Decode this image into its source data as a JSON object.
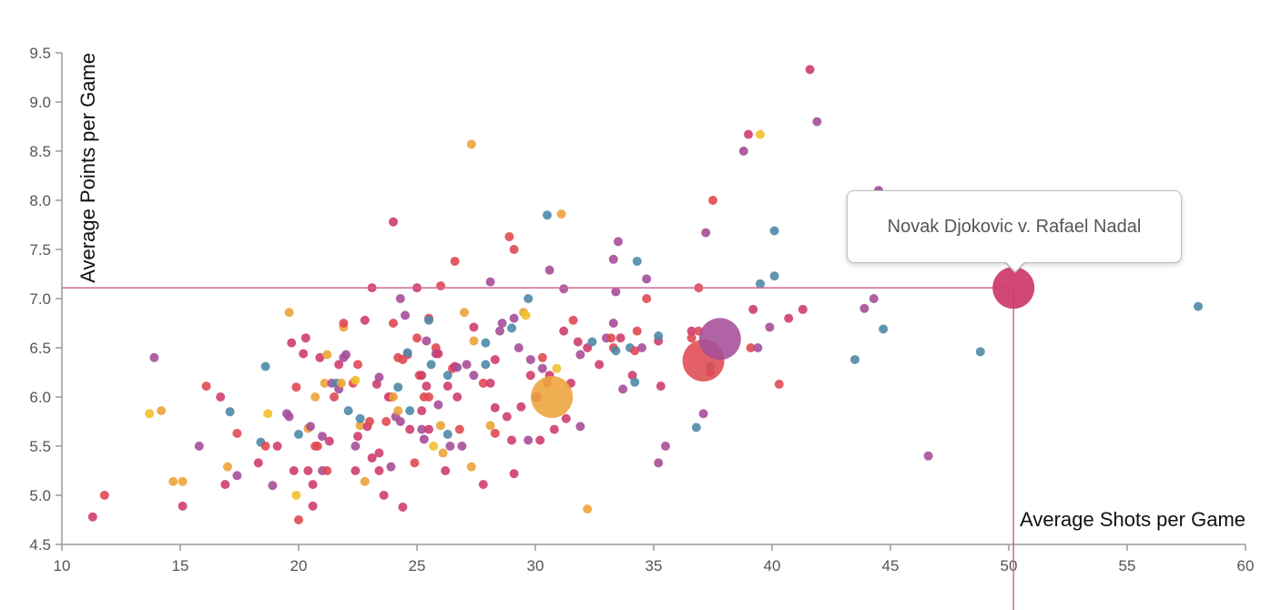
{
  "chart_data": {
    "type": "scatter",
    "xlabel": "Average Shots per Game",
    "ylabel": "Average Points per Game",
    "xlim": [
      10,
      60
    ],
    "ylim": [
      4.5,
      9.5
    ],
    "x_ticks": [
      "10",
      "15",
      "20",
      "25",
      "30",
      "35",
      "40",
      "45",
      "50",
      "55",
      "60"
    ],
    "y_ticks": [
      "4.5",
      "5.0",
      "5.5",
      "6.0",
      "6.5",
      "7.0",
      "7.5",
      "8.0",
      "8.5",
      "9.0",
      "9.5"
    ],
    "grid": false,
    "palette": {
      "red": "#e04a52",
      "magenta": "#cf3d6f",
      "purple": "#a54f99",
      "blue": "#4e8aa8",
      "orange": "#eda33a",
      "yellow": "#f2c12e",
      "crosshair": "#d16893"
    },
    "highlight": {
      "label": "Novak Djokovic v. Rafael Nadal",
      "x": 50.2,
      "y": 7.11,
      "color": "magenta"
    },
    "large_points": [
      {
        "x": 30.7,
        "y": 6.0,
        "color": "orange"
      },
      {
        "x": 37.1,
        "y": 6.37,
        "color": "red"
      },
      {
        "x": 37.8,
        "y": 6.59,
        "color": "purple"
      }
    ],
    "points": [
      [
        11.3,
        4.78,
        "magenta"
      ],
      [
        11.8,
        5.0,
        "red"
      ],
      [
        13.7,
        5.83,
        "yellow"
      ],
      [
        13.9,
        6.4,
        "purple"
      ],
      [
        14.2,
        5.86,
        "orange"
      ],
      [
        14.7,
        5.14,
        "orange"
      ],
      [
        15.1,
        5.14,
        "orange"
      ],
      [
        15.1,
        4.89,
        "magenta"
      ],
      [
        15.8,
        5.5,
        "purple"
      ],
      [
        16.1,
        6.11,
        "red"
      ],
      [
        16.7,
        6.0,
        "magenta"
      ],
      [
        16.9,
        5.11,
        "magenta"
      ],
      [
        17.0,
        5.29,
        "orange"
      ],
      [
        17.1,
        5.85,
        "blue"
      ],
      [
        17.4,
        5.2,
        "purple"
      ],
      [
        17.4,
        5.63,
        "red"
      ],
      [
        18.3,
        5.33,
        "magenta"
      ],
      [
        18.4,
        5.54,
        "blue"
      ],
      [
        18.6,
        6.31,
        "blue"
      ],
      [
        18.6,
        5.5,
        "red"
      ],
      [
        18.7,
        5.83,
        "yellow"
      ],
      [
        18.9,
        5.1,
        "purple"
      ],
      [
        19.1,
        5.5,
        "magenta"
      ],
      [
        19.5,
        5.83,
        "purple"
      ],
      [
        19.6,
        6.86,
        "orange"
      ],
      [
        19.6,
        5.8,
        "purple"
      ],
      [
        19.7,
        6.55,
        "magenta"
      ],
      [
        19.8,
        5.25,
        "magenta"
      ],
      [
        19.9,
        5.0,
        "yellow"
      ],
      [
        19.9,
        6.1,
        "red"
      ],
      [
        20.0,
        4.75,
        "red"
      ],
      [
        20.0,
        5.62,
        "blue"
      ],
      [
        20.2,
        6.44,
        "magenta"
      ],
      [
        20.3,
        6.6,
        "magenta"
      ],
      [
        20.4,
        5.68,
        "orange"
      ],
      [
        20.4,
        5.25,
        "magenta"
      ],
      [
        20.5,
        5.7,
        "purple"
      ],
      [
        20.6,
        5.11,
        "magenta"
      ],
      [
        20.6,
        4.89,
        "magenta"
      ],
      [
        20.7,
        6.0,
        "orange"
      ],
      [
        20.7,
        5.5,
        "red"
      ],
      [
        20.8,
        5.5,
        "red"
      ],
      [
        20.9,
        6.4,
        "magenta"
      ],
      [
        21.0,
        5.25,
        "purple"
      ],
      [
        21.0,
        5.6,
        "purple"
      ],
      [
        21.1,
        6.14,
        "orange"
      ],
      [
        21.2,
        6.43,
        "orange"
      ],
      [
        21.2,
        5.25,
        "red"
      ],
      [
        21.3,
        5.55,
        "magenta"
      ],
      [
        21.4,
        6.14,
        "purple"
      ],
      [
        21.5,
        6.0,
        "red"
      ],
      [
        21.6,
        6.14,
        "blue"
      ],
      [
        21.7,
        6.33,
        "magenta"
      ],
      [
        21.7,
        6.08,
        "purple"
      ],
      [
        21.8,
        6.14,
        "orange"
      ],
      [
        21.9,
        6.71,
        "orange"
      ],
      [
        21.9,
        6.75,
        "red"
      ],
      [
        21.9,
        6.4,
        "purple"
      ],
      [
        22.0,
        6.43,
        "purple"
      ],
      [
        22.1,
        5.86,
        "blue"
      ],
      [
        22.3,
        6.14,
        "red"
      ],
      [
        22.4,
        6.17,
        "yellow"
      ],
      [
        22.4,
        5.25,
        "magenta"
      ],
      [
        22.4,
        5.5,
        "purple"
      ],
      [
        22.5,
        5.6,
        "magenta"
      ],
      [
        22.5,
        6.33,
        "red"
      ],
      [
        22.6,
        5.71,
        "orange"
      ],
      [
        22.6,
        5.78,
        "blue"
      ],
      [
        22.8,
        5.14,
        "orange"
      ],
      [
        22.8,
        6.78,
        "magenta"
      ],
      [
        22.9,
        5.7,
        "magenta"
      ],
      [
        23.0,
        5.75,
        "red"
      ],
      [
        23.1,
        7.11,
        "magenta"
      ],
      [
        23.1,
        5.38,
        "magenta"
      ],
      [
        23.3,
        6.13,
        "magenta"
      ],
      [
        23.4,
        5.25,
        "magenta"
      ],
      [
        23.4,
        5.43,
        "magenta"
      ],
      [
        23.4,
        6.2,
        "purple"
      ],
      [
        23.6,
        5.0,
        "magenta"
      ],
      [
        23.7,
        5.75,
        "red"
      ],
      [
        23.8,
        6.0,
        "magenta"
      ],
      [
        23.9,
        5.29,
        "purple"
      ],
      [
        23.9,
        6.0,
        "magenta"
      ],
      [
        24.0,
        6.0,
        "orange"
      ],
      [
        24.0,
        7.78,
        "magenta"
      ],
      [
        24.0,
        6.75,
        "red"
      ],
      [
        24.1,
        5.8,
        "purple"
      ],
      [
        24.2,
        6.1,
        "blue"
      ],
      [
        24.2,
        6.4,
        "red"
      ],
      [
        24.2,
        5.86,
        "orange"
      ],
      [
        24.3,
        7.0,
        "purple"
      ],
      [
        24.3,
        5.75,
        "purple"
      ],
      [
        24.4,
        6.38,
        "red"
      ],
      [
        24.4,
        4.88,
        "magenta"
      ],
      [
        24.5,
        6.83,
        "purple"
      ],
      [
        24.6,
        6.43,
        "red"
      ],
      [
        24.6,
        6.45,
        "blue"
      ],
      [
        24.7,
        5.86,
        "blue"
      ],
      [
        24.7,
        5.67,
        "magenta"
      ],
      [
        24.9,
        5.33,
        "red"
      ],
      [
        25.0,
        6.6,
        "red"
      ],
      [
        25.0,
        7.11,
        "magenta"
      ],
      [
        25.1,
        6.22,
        "red"
      ],
      [
        25.2,
        5.86,
        "magenta"
      ],
      [
        25.2,
        5.67,
        "purple"
      ],
      [
        25.2,
        6.22,
        "magenta"
      ],
      [
        25.3,
        6.0,
        "red"
      ],
      [
        25.3,
        5.57,
        "purple"
      ],
      [
        25.4,
        6.57,
        "purple"
      ],
      [
        25.4,
        6.11,
        "magenta"
      ],
      [
        25.5,
        5.67,
        "magenta"
      ],
      [
        25.5,
        6.8,
        "red"
      ],
      [
        25.5,
        6.0,
        "red"
      ],
      [
        25.5,
        6.78,
        "blue"
      ],
      [
        25.6,
        6.33,
        "blue"
      ],
      [
        25.7,
        5.5,
        "yellow"
      ],
      [
        25.8,
        6.5,
        "red"
      ],
      [
        25.8,
        6.44,
        "purple"
      ],
      [
        25.9,
        6.44,
        "magenta"
      ],
      [
        25.9,
        5.92,
        "purple"
      ],
      [
        26.0,
        5.71,
        "orange"
      ],
      [
        26.0,
        7.13,
        "red"
      ],
      [
        26.1,
        5.43,
        "orange"
      ],
      [
        26.2,
        5.25,
        "magenta"
      ],
      [
        26.3,
        6.11,
        "magenta"
      ],
      [
        26.3,
        6.22,
        "blue"
      ],
      [
        26.3,
        5.62,
        "blue"
      ],
      [
        26.4,
        5.5,
        "purple"
      ],
      [
        26.5,
        6.29,
        "red"
      ],
      [
        26.6,
        6.31,
        "magenta"
      ],
      [
        26.6,
        7.38,
        "red"
      ],
      [
        26.7,
        6.3,
        "purple"
      ],
      [
        26.7,
        6.0,
        "magenta"
      ],
      [
        26.8,
        5.67,
        "red"
      ],
      [
        26.9,
        5.5,
        "purple"
      ],
      [
        27.0,
        6.86,
        "orange"
      ],
      [
        27.1,
        6.33,
        "purple"
      ],
      [
        27.3,
        8.57,
        "orange"
      ],
      [
        27.3,
        5.29,
        "orange"
      ],
      [
        27.4,
        6.57,
        "orange"
      ],
      [
        27.4,
        6.71,
        "magenta"
      ],
      [
        27.4,
        6.22,
        "purple"
      ],
      [
        27.8,
        6.14,
        "red"
      ],
      [
        27.8,
        5.11,
        "magenta"
      ],
      [
        27.9,
        6.33,
        "blue"
      ],
      [
        27.9,
        6.55,
        "blue"
      ],
      [
        28.1,
        7.17,
        "purple"
      ],
      [
        28.1,
        6.14,
        "magenta"
      ],
      [
        28.1,
        5.71,
        "orange"
      ],
      [
        28.3,
        5.89,
        "magenta"
      ],
      [
        28.3,
        5.63,
        "red"
      ],
      [
        28.3,
        6.38,
        "magenta"
      ],
      [
        28.5,
        6.67,
        "purple"
      ],
      [
        28.6,
        6.75,
        "purple"
      ],
      [
        28.8,
        5.8,
        "magenta"
      ],
      [
        28.9,
        7.63,
        "red"
      ],
      [
        29.0,
        6.7,
        "blue"
      ],
      [
        29.0,
        5.56,
        "magenta"
      ],
      [
        29.1,
        7.5,
        "red"
      ],
      [
        29.1,
        6.8,
        "purple"
      ],
      [
        29.1,
        5.22,
        "magenta"
      ],
      [
        29.3,
        6.5,
        "purple"
      ],
      [
        29.4,
        5.9,
        "magenta"
      ],
      [
        29.5,
        6.86,
        "orange"
      ],
      [
        29.6,
        6.83,
        "yellow"
      ],
      [
        29.7,
        7.0,
        "blue"
      ],
      [
        29.7,
        5.56,
        "purple"
      ],
      [
        29.8,
        6.22,
        "magenta"
      ],
      [
        29.8,
        6.38,
        "purple"
      ],
      [
        30.0,
        6.0,
        "blue"
      ],
      [
        30.1,
        6.0,
        "magenta"
      ],
      [
        30.2,
        5.56,
        "magenta"
      ],
      [
        30.3,
        6.4,
        "red"
      ],
      [
        30.3,
        6.29,
        "purple"
      ],
      [
        30.5,
        7.85,
        "blue"
      ],
      [
        30.5,
        6.14,
        "magenta"
      ],
      [
        30.6,
        7.29,
        "purple"
      ],
      [
        30.6,
        6.22,
        "magenta"
      ],
      [
        30.8,
        5.67,
        "magenta"
      ],
      [
        30.9,
        6.29,
        "yellow"
      ],
      [
        31.1,
        7.86,
        "orange"
      ],
      [
        31.2,
        6.67,
        "magenta"
      ],
      [
        31.2,
        7.1,
        "purple"
      ],
      [
        31.3,
        5.78,
        "magenta"
      ],
      [
        31.5,
        6.14,
        "magenta"
      ],
      [
        31.6,
        6.78,
        "red"
      ],
      [
        31.8,
        6.56,
        "magenta"
      ],
      [
        31.9,
        6.43,
        "purple"
      ],
      [
        31.9,
        5.7,
        "purple"
      ],
      [
        32.2,
        6.5,
        "magenta"
      ],
      [
        32.2,
        4.86,
        "orange"
      ],
      [
        32.4,
        6.56,
        "blue"
      ],
      [
        32.7,
        6.33,
        "magenta"
      ],
      [
        33.0,
        6.6,
        "purple"
      ],
      [
        33.2,
        6.6,
        "red"
      ],
      [
        33.3,
        7.4,
        "purple"
      ],
      [
        33.3,
        6.5,
        "red"
      ],
      [
        33.3,
        6.75,
        "purple"
      ],
      [
        33.4,
        6.47,
        "blue"
      ],
      [
        33.4,
        7.07,
        "purple"
      ],
      [
        33.5,
        7.58,
        "purple"
      ],
      [
        33.6,
        6.6,
        "magenta"
      ],
      [
        33.7,
        6.08,
        "purple"
      ],
      [
        34.0,
        6.5,
        "blue"
      ],
      [
        34.1,
        6.22,
        "magenta"
      ],
      [
        34.2,
        6.15,
        "blue"
      ],
      [
        34.2,
        6.47,
        "red"
      ],
      [
        34.3,
        6.67,
        "red"
      ],
      [
        34.3,
        7.38,
        "blue"
      ],
      [
        34.5,
        6.5,
        "purple"
      ],
      [
        34.7,
        7.0,
        "red"
      ],
      [
        34.7,
        7.2,
        "purple"
      ],
      [
        35.2,
        6.57,
        "magenta"
      ],
      [
        35.2,
        6.62,
        "blue"
      ],
      [
        35.2,
        5.33,
        "purple"
      ],
      [
        35.3,
        6.11,
        "magenta"
      ],
      [
        35.5,
        5.5,
        "purple"
      ],
      [
        36.6,
        6.6,
        "red"
      ],
      [
        36.6,
        6.67,
        "magenta"
      ],
      [
        36.8,
        5.69,
        "blue"
      ],
      [
        36.9,
        7.11,
        "red"
      ],
      [
        36.9,
        6.67,
        "red"
      ],
      [
        37.1,
        5.83,
        "purple"
      ],
      [
        37.2,
        7.67,
        "purple"
      ],
      [
        37.4,
        6.25,
        "magenta"
      ],
      [
        37.4,
        6.31,
        "blue"
      ],
      [
        37.5,
        8.0,
        "red"
      ],
      [
        38.8,
        8.5,
        "purple"
      ],
      [
        39.0,
        8.67,
        "magenta"
      ],
      [
        39.1,
        6.5,
        "red"
      ],
      [
        39.2,
        6.89,
        "magenta"
      ],
      [
        39.4,
        6.5,
        "purple"
      ],
      [
        39.5,
        7.15,
        "blue"
      ],
      [
        39.5,
        8.67,
        "yellow"
      ],
      [
        39.9,
        6.71,
        "purple"
      ],
      [
        40.1,
        7.69,
        "blue"
      ],
      [
        40.1,
        7.23,
        "blue"
      ],
      [
        40.3,
        6.13,
        "red"
      ],
      [
        40.7,
        6.8,
        "magenta"
      ],
      [
        41.3,
        6.89,
        "magenta"
      ],
      [
        41.6,
        9.33,
        "magenta"
      ],
      [
        41.9,
        8.8,
        "purple"
      ],
      [
        43.5,
        6.38,
        "blue"
      ],
      [
        43.9,
        6.9,
        "purple"
      ],
      [
        44.3,
        7.0,
        "purple"
      ],
      [
        44.5,
        8.1,
        "purple"
      ],
      [
        44.7,
        6.69,
        "blue"
      ],
      [
        46.6,
        5.4,
        "purple"
      ],
      [
        48.8,
        6.46,
        "blue"
      ],
      [
        58.0,
        6.92,
        "blue"
      ]
    ]
  }
}
